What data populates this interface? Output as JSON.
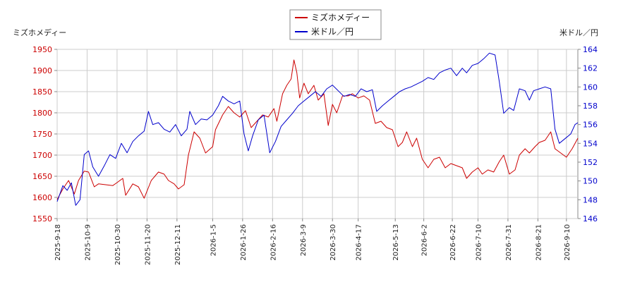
{
  "chart_data": {
    "type": "line",
    "left_axis_title": "ミズホメディー",
    "right_axis_title": "米ドル／円",
    "left_ylim": [
      1550,
      1950
    ],
    "left_ticks": [
      1550,
      1600,
      1650,
      1700,
      1750,
      1800,
      1850,
      1900,
      1950
    ],
    "right_ylim": [
      146,
      164
    ],
    "right_ticks": [
      146,
      148,
      150,
      152,
      154,
      156,
      158,
      160,
      162,
      164
    ],
    "x_range": [
      "2025-09-18",
      "2026-09-18"
    ],
    "x_ticks": [
      "2025-9-18",
      "2025-10-9",
      "2025-10-30",
      "2025-11-20",
      "2025-12-11",
      "2026-1-5",
      "2026-1-26",
      "2026-2-16",
      "2026-3-9",
      "2026-3-30",
      "2026-4-17",
      "2026-5-13",
      "2026-6-2",
      "2026-6-22",
      "2026-7-10",
      "2026-7-31",
      "2026-8-21",
      "2026-9-10"
    ],
    "grid": true,
    "legend_position": "top-center",
    "series": [
      {
        "name": "ミズホメディー",
        "axis": "left",
        "color": "#cc0000",
        "points": [
          [
            "2025-09-18",
            1595
          ],
          [
            "2025-09-22",
            1620
          ],
          [
            "2025-09-26",
            1640
          ],
          [
            "2025-09-30",
            1608
          ],
          [
            "2025-10-03",
            1640
          ],
          [
            "2025-10-07",
            1662
          ],
          [
            "2025-10-10",
            1660
          ],
          [
            "2025-10-14",
            1625
          ],
          [
            "2025-10-17",
            1632
          ],
          [
            "2025-10-22",
            1630
          ],
          [
            "2025-10-27",
            1628
          ],
          [
            "2025-10-30",
            1635
          ],
          [
            "2025-11-03",
            1645
          ],
          [
            "2025-11-05",
            1605
          ],
          [
            "2025-11-10",
            1632
          ],
          [
            "2025-11-14",
            1625
          ],
          [
            "2025-11-18",
            1598
          ],
          [
            "2025-11-23",
            1640
          ],
          [
            "2025-11-28",
            1660
          ],
          [
            "2025-12-02",
            1655
          ],
          [
            "2025-12-05",
            1640
          ],
          [
            "2025-12-09",
            1632
          ],
          [
            "2025-12-12",
            1620
          ],
          [
            "2025-12-16",
            1630
          ],
          [
            "2025-12-19",
            1700
          ],
          [
            "2025-12-23",
            1755
          ],
          [
            "2025-12-27",
            1740
          ],
          [
            "2025-12-31",
            1705
          ],
          [
            "2026-01-05",
            1720
          ],
          [
            "2026-01-07",
            1760
          ],
          [
            "2026-01-12",
            1795
          ],
          [
            "2026-01-16",
            1815
          ],
          [
            "2026-01-20",
            1800
          ],
          [
            "2026-01-24",
            1790
          ],
          [
            "2026-01-28",
            1805
          ],
          [
            "2026-02-01",
            1765
          ],
          [
            "2026-02-05",
            1780
          ],
          [
            "2026-02-09",
            1795
          ],
          [
            "2026-02-13",
            1790
          ],
          [
            "2026-02-17",
            1810
          ],
          [
            "2026-02-19",
            1780
          ],
          [
            "2026-02-23",
            1845
          ],
          [
            "2026-02-26",
            1865
          ],
          [
            "2026-03-01",
            1880
          ],
          [
            "2026-03-03",
            1925
          ],
          [
            "2026-03-05",
            1895
          ],
          [
            "2026-03-07",
            1835
          ],
          [
            "2026-03-10",
            1870
          ],
          [
            "2026-03-13",
            1845
          ],
          [
            "2026-03-17",
            1865
          ],
          [
            "2026-03-20",
            1830
          ],
          [
            "2026-03-24",
            1845
          ],
          [
            "2026-03-27",
            1770
          ],
          [
            "2026-03-30",
            1820
          ],
          [
            "2026-04-02",
            1800
          ],
          [
            "2026-04-06",
            1840
          ],
          [
            "2026-04-10",
            1840
          ],
          [
            "2026-04-13",
            1845
          ],
          [
            "2026-04-17",
            1835
          ],
          [
            "2026-04-21",
            1840
          ],
          [
            "2026-04-25",
            1830
          ],
          [
            "2026-04-29",
            1775
          ],
          [
            "2026-05-03",
            1780
          ],
          [
            "2026-05-07",
            1765
          ],
          [
            "2026-05-11",
            1760
          ],
          [
            "2026-05-15",
            1720
          ],
          [
            "2026-05-18",
            1730
          ],
          [
            "2026-05-21",
            1755
          ],
          [
            "2026-05-25",
            1720
          ],
          [
            "2026-05-28",
            1740
          ],
          [
            "2026-06-01",
            1690
          ],
          [
            "2026-06-05",
            1670
          ],
          [
            "2026-06-09",
            1690
          ],
          [
            "2026-06-13",
            1695
          ],
          [
            "2026-06-17",
            1670
          ],
          [
            "2026-06-21",
            1680
          ],
          [
            "2026-06-25",
            1675
          ],
          [
            "2026-06-29",
            1670
          ],
          [
            "2026-07-02",
            1645
          ],
          [
            "2026-07-06",
            1660
          ],
          [
            "2026-07-10",
            1670
          ],
          [
            "2026-07-13",
            1655
          ],
          [
            "2026-07-17",
            1665
          ],
          [
            "2026-07-21",
            1660
          ],
          [
            "2026-07-25",
            1685
          ],
          [
            "2026-07-28",
            1700
          ],
          [
            "2026-08-01",
            1655
          ],
          [
            "2026-08-05",
            1665
          ],
          [
            "2026-08-08",
            1700
          ],
          [
            "2026-08-12",
            1715
          ],
          [
            "2026-08-15",
            1705
          ],
          [
            "2026-08-19",
            1720
          ],
          [
            "2026-08-22",
            1730
          ],
          [
            "2026-08-26",
            1735
          ],
          [
            "2026-08-30",
            1755
          ],
          [
            "2026-09-02",
            1715
          ],
          [
            "2026-09-06",
            1705
          ],
          [
            "2026-09-10",
            1695
          ],
          [
            "2026-09-14",
            1715
          ],
          [
            "2026-09-18",
            1740
          ]
        ]
      },
      {
        "name": "米ドル／円",
        "axis": "right",
        "color": "#0000cc",
        "points": [
          [
            "2025-09-18",
            147.8
          ],
          [
            "2025-09-22",
            149.5
          ],
          [
            "2025-09-25",
            149.0
          ],
          [
            "2025-09-28",
            149.8
          ],
          [
            "2025-10-01",
            147.4
          ],
          [
            "2025-10-04",
            148.0
          ],
          [
            "2025-10-07",
            152.8
          ],
          [
            "2025-10-10",
            153.2
          ],
          [
            "2025-10-13",
            151.5
          ],
          [
            "2025-10-17",
            150.5
          ],
          [
            "2025-10-21",
            151.6
          ],
          [
            "2025-10-25",
            152.8
          ],
          [
            "2025-10-29",
            152.4
          ],
          [
            "2025-11-02",
            154.0
          ],
          [
            "2025-11-06",
            153.0
          ],
          [
            "2025-11-10",
            154.2
          ],
          [
            "2025-11-14",
            154.8
          ],
          [
            "2025-11-18",
            155.3
          ],
          [
            "2025-11-21",
            157.4
          ],
          [
            "2025-11-24",
            156.0
          ],
          [
            "2025-11-28",
            156.2
          ],
          [
            "2025-12-02",
            155.5
          ],
          [
            "2025-12-06",
            155.2
          ],
          [
            "2025-12-10",
            156.0
          ],
          [
            "2025-12-14",
            154.8
          ],
          [
            "2025-12-18",
            155.5
          ],
          [
            "2025-12-20",
            157.4
          ],
          [
            "2025-12-24",
            156.0
          ],
          [
            "2025-12-28",
            156.6
          ],
          [
            "2026-01-01",
            156.5
          ],
          [
            "2026-01-05",
            157.0
          ],
          [
            "2026-01-09",
            158.0
          ],
          [
            "2026-01-12",
            159.0
          ],
          [
            "2026-01-16",
            158.5
          ],
          [
            "2026-01-20",
            158.2
          ],
          [
            "2026-01-24",
            158.5
          ],
          [
            "2026-01-27",
            155.0
          ],
          [
            "2026-01-30",
            153.2
          ],
          [
            "2026-02-02",
            154.8
          ],
          [
            "2026-02-06",
            156.5
          ],
          [
            "2026-02-10",
            157.0
          ],
          [
            "2026-02-14",
            153.0
          ],
          [
            "2026-02-18",
            154.2
          ],
          [
            "2026-02-22",
            155.8
          ],
          [
            "2026-02-26",
            156.5
          ],
          [
            "2026-03-02",
            157.2
          ],
          [
            "2026-03-06",
            158.0
          ],
          [
            "2026-03-10",
            158.5
          ],
          [
            "2026-03-14",
            159.0
          ],
          [
            "2026-03-18",
            159.5
          ],
          [
            "2026-03-22",
            159.0
          ],
          [
            "2026-03-26",
            159.8
          ],
          [
            "2026-03-30",
            160.2
          ],
          [
            "2026-04-03",
            159.6
          ],
          [
            "2026-04-07",
            159.0
          ],
          [
            "2026-04-11",
            159.2
          ],
          [
            "2026-04-15",
            159.0
          ],
          [
            "2026-04-19",
            159.8
          ],
          [
            "2026-04-23",
            159.5
          ],
          [
            "2026-04-27",
            159.7
          ],
          [
            "2026-04-30",
            157.4
          ],
          [
            "2026-05-04",
            158.0
          ],
          [
            "2026-05-08",
            158.5
          ],
          [
            "2026-05-12",
            159.0
          ],
          [
            "2026-05-16",
            159.5
          ],
          [
            "2026-05-20",
            159.8
          ],
          [
            "2026-05-24",
            160.0
          ],
          [
            "2026-05-28",
            160.3
          ],
          [
            "2026-06-01",
            160.6
          ],
          [
            "2026-06-05",
            161.0
          ],
          [
            "2026-06-09",
            160.8
          ],
          [
            "2026-06-13",
            161.5
          ],
          [
            "2026-06-17",
            161.8
          ],
          [
            "2026-06-21",
            162.0
          ],
          [
            "2026-06-25",
            161.2
          ],
          [
            "2026-06-29",
            162.0
          ],
          [
            "2026-07-02",
            161.5
          ],
          [
            "2026-07-06",
            162.3
          ],
          [
            "2026-07-10",
            162.5
          ],
          [
            "2026-07-14",
            163.0
          ],
          [
            "2026-07-18",
            163.6
          ],
          [
            "2026-07-22",
            163.4
          ],
          [
            "2026-07-25",
            160.5
          ],
          [
            "2026-07-28",
            157.2
          ],
          [
            "2026-08-01",
            157.8
          ],
          [
            "2026-08-04",
            157.5
          ],
          [
            "2026-08-08",
            159.8
          ],
          [
            "2026-08-12",
            159.6
          ],
          [
            "2026-08-15",
            158.6
          ],
          [
            "2026-08-18",
            159.6
          ],
          [
            "2026-08-22",
            159.8
          ],
          [
            "2026-08-26",
            160.0
          ],
          [
            "2026-08-30",
            159.8
          ],
          [
            "2026-09-02",
            155.5
          ],
          [
            "2026-09-05",
            154.0
          ],
          [
            "2026-09-09",
            154.5
          ],
          [
            "2026-09-13",
            155.0
          ],
          [
            "2026-09-16",
            156.0
          ],
          [
            "2026-09-18",
            156.2
          ]
        ]
      }
    ]
  }
}
